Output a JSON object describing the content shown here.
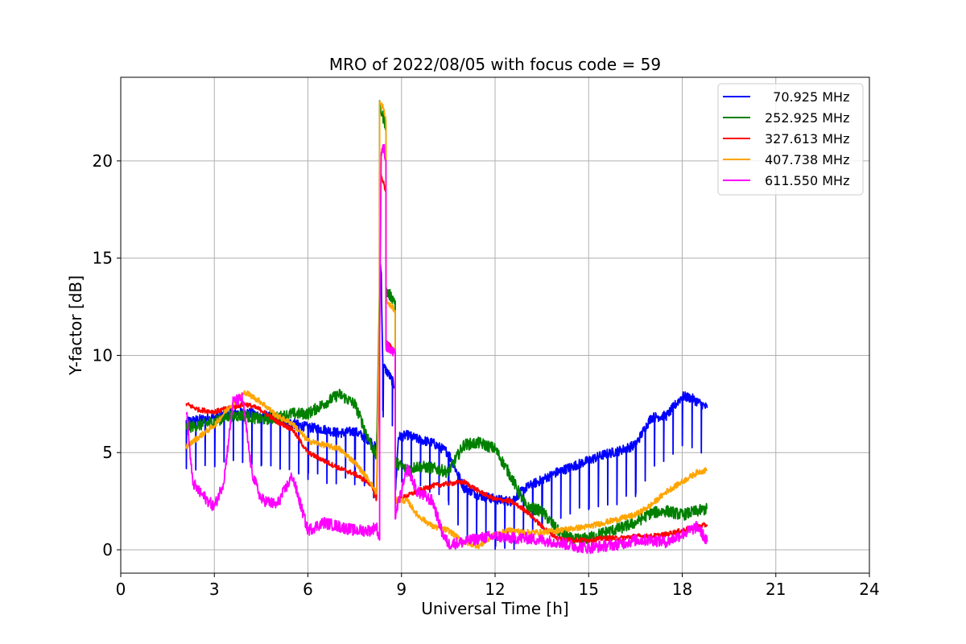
{
  "chart_data": {
    "type": "line",
    "title": "MRO of 2022/08/05 with focus code = 59",
    "xlabel": "Universal Time [h]",
    "ylabel": "Y-factor [dB]",
    "xlim": [
      0,
      24
    ],
    "ylim": [
      -1.2,
      24.3
    ],
    "xticks": [
      0,
      3,
      6,
      9,
      12,
      15,
      18,
      21,
      24
    ],
    "yticks": [
      0,
      5,
      10,
      15,
      20
    ],
    "grid": true,
    "legend_position": "top-right",
    "series": [
      {
        "name": "  70.925 MHz",
        "color": "#0000ff",
        "points": [
          [
            2.1,
            6.6
          ],
          [
            2.5,
            6.7
          ],
          [
            3.0,
            6.8
          ],
          [
            3.5,
            7.0
          ],
          [
            4.0,
            7.1
          ],
          [
            4.5,
            6.9
          ],
          [
            5.0,
            6.8
          ],
          [
            5.5,
            6.5
          ],
          [
            6.0,
            6.3
          ],
          [
            6.5,
            6.2
          ],
          [
            7.0,
            6.0
          ],
          [
            7.5,
            6.1
          ],
          [
            8.0,
            5.6
          ],
          [
            8.2,
            5.2
          ],
          [
            8.3,
            9.8
          ],
          [
            8.3,
            15.0
          ],
          [
            8.35,
            14.2
          ],
          [
            8.4,
            9.5
          ],
          [
            8.6,
            9.0
          ],
          [
            8.8,
            8.4
          ],
          [
            8.8,
            2.8
          ],
          [
            8.9,
            5.8
          ],
          [
            9.2,
            5.9
          ],
          [
            9.5,
            5.7
          ],
          [
            10.0,
            5.5
          ],
          [
            10.5,
            5.0
          ],
          [
            11.0,
            3.2
          ],
          [
            11.5,
            2.8
          ],
          [
            12.0,
            2.6
          ],
          [
            12.5,
            2.5
          ],
          [
            13.0,
            3.2
          ],
          [
            13.5,
            3.6
          ],
          [
            14.0,
            4.0
          ],
          [
            14.5,
            4.3
          ],
          [
            15.0,
            4.6
          ],
          [
            15.5,
            4.9
          ],
          [
            16.0,
            5.1
          ],
          [
            16.5,
            5.4
          ],
          [
            17.0,
            6.8
          ],
          [
            17.5,
            6.9
          ],
          [
            18.0,
            7.9
          ],
          [
            18.3,
            7.8
          ],
          [
            18.5,
            7.6
          ],
          [
            18.8,
            7.3
          ]
        ],
        "dip_interval": 0.3,
        "dip_depth": 2.5
      },
      {
        "name": "252.925 MHz",
        "color": "#008000",
        "points": [
          [
            2.1,
            6.3
          ],
          [
            2.5,
            6.4
          ],
          [
            3.0,
            6.6
          ],
          [
            3.5,
            6.9
          ],
          [
            4.0,
            6.9
          ],
          [
            4.5,
            6.7
          ],
          [
            5.0,
            6.8
          ],
          [
            5.5,
            7.0
          ],
          [
            6.0,
            7.0
          ],
          [
            6.5,
            7.5
          ],
          [
            7.0,
            8.0
          ],
          [
            7.5,
            7.5
          ],
          [
            8.0,
            5.5
          ],
          [
            8.2,
            4.8
          ],
          [
            8.3,
            13.6
          ],
          [
            8.3,
            22.8
          ],
          [
            8.4,
            22.3
          ],
          [
            8.5,
            21.8
          ],
          [
            8.5,
            13.3
          ],
          [
            8.8,
            12.8
          ],
          [
            8.8,
            4.5
          ],
          [
            9.2,
            4.1
          ],
          [
            9.5,
            4.3
          ],
          [
            10.0,
            4.2
          ],
          [
            10.5,
            4.0
          ],
          [
            11.0,
            5.4
          ],
          [
            11.5,
            5.5
          ],
          [
            12.0,
            5.2
          ],
          [
            12.5,
            3.8
          ],
          [
            13.0,
            2.2
          ],
          [
            13.5,
            2.0
          ],
          [
            14.0,
            1.0
          ],
          [
            14.5,
            0.5
          ],
          [
            15.0,
            0.6
          ],
          [
            15.5,
            0.9
          ],
          [
            16.0,
            1.1
          ],
          [
            16.5,
            1.4
          ],
          [
            17.0,
            1.9
          ],
          [
            17.5,
            2.0
          ],
          [
            18.0,
            1.8
          ],
          [
            18.5,
            2.0
          ],
          [
            18.8,
            2.1
          ]
        ]
      },
      {
        "name": "327.613 MHz",
        "color": "#ff0000",
        "points": [
          [
            2.1,
            7.5
          ],
          [
            2.5,
            7.2
          ],
          [
            3.0,
            7.1
          ],
          [
            3.5,
            7.3
          ],
          [
            4.0,
            7.5
          ],
          [
            4.5,
            7.2
          ],
          [
            5.0,
            6.6
          ],
          [
            5.5,
            6.2
          ],
          [
            6.0,
            5.0
          ],
          [
            6.5,
            4.6
          ],
          [
            7.0,
            4.2
          ],
          [
            7.5,
            3.9
          ],
          [
            8.0,
            3.4
          ],
          [
            8.2,
            2.6
          ],
          [
            8.3,
            11.0
          ],
          [
            8.3,
            19.5
          ],
          [
            8.4,
            19.0
          ],
          [
            8.5,
            18.4
          ],
          [
            8.5,
            10.7
          ],
          [
            8.8,
            10.2
          ],
          [
            8.8,
            2.5
          ],
          [
            9.2,
            2.8
          ],
          [
            9.5,
            3.0
          ],
          [
            10.0,
            3.3
          ],
          [
            10.5,
            3.4
          ],
          [
            11.0,
            3.5
          ],
          [
            11.5,
            3.0
          ],
          [
            12.0,
            2.6
          ],
          [
            12.5,
            2.5
          ],
          [
            13.0,
            2.0
          ],
          [
            13.5,
            1.2
          ],
          [
            14.0,
            0.6
          ],
          [
            14.5,
            0.5
          ],
          [
            15.0,
            0.5
          ],
          [
            15.5,
            0.6
          ],
          [
            16.0,
            0.6
          ],
          [
            16.5,
            0.7
          ],
          [
            17.0,
            0.7
          ],
          [
            17.5,
            0.8
          ],
          [
            18.0,
            1.0
          ],
          [
            18.5,
            1.2
          ],
          [
            18.8,
            1.3
          ]
        ]
      },
      {
        "name": "407.738 MHz",
        "color": "#ffa500",
        "points": [
          [
            2.1,
            5.3
          ],
          [
            2.5,
            5.8
          ],
          [
            3.0,
            6.4
          ],
          [
            3.5,
            7.4
          ],
          [
            4.0,
            8.1
          ],
          [
            4.5,
            7.6
          ],
          [
            5.0,
            6.9
          ],
          [
            5.5,
            6.5
          ],
          [
            6.0,
            5.6
          ],
          [
            6.5,
            5.4
          ],
          [
            7.0,
            5.2
          ],
          [
            7.5,
            4.5
          ],
          [
            8.0,
            3.5
          ],
          [
            8.2,
            2.9
          ],
          [
            8.3,
            13.1
          ],
          [
            8.3,
            23.0
          ],
          [
            8.4,
            22.8
          ],
          [
            8.5,
            22.1
          ],
          [
            8.5,
            12.8
          ],
          [
            8.8,
            12.3
          ],
          [
            8.8,
            2.6
          ],
          [
            9.2,
            2.5
          ],
          [
            9.5,
            1.8
          ],
          [
            10.0,
            1.2
          ],
          [
            10.5,
            1.0
          ],
          [
            11.0,
            0.4
          ],
          [
            11.5,
            0.2
          ],
          [
            12.0,
            0.8
          ],
          [
            12.5,
            1.0
          ],
          [
            13.0,
            0.9
          ],
          [
            13.5,
            0.9
          ],
          [
            14.0,
            1.0
          ],
          [
            14.5,
            1.1
          ],
          [
            15.0,
            1.2
          ],
          [
            15.5,
            1.4
          ],
          [
            16.0,
            1.6
          ],
          [
            16.5,
            1.8
          ],
          [
            17.0,
            2.3
          ],
          [
            17.5,
            3.0
          ],
          [
            18.0,
            3.5
          ],
          [
            18.5,
            4.0
          ],
          [
            18.8,
            4.1
          ]
        ]
      },
      {
        "name": "611.550 MHz",
        "color": "#ff00ff",
        "points": [
          [
            2.1,
            7.3
          ],
          [
            2.3,
            3.5
          ],
          [
            2.5,
            3.0
          ],
          [
            3.0,
            2.2
          ],
          [
            3.3,
            3.5
          ],
          [
            3.6,
            7.6
          ],
          [
            3.9,
            7.8
          ],
          [
            4.2,
            4.0
          ],
          [
            4.5,
            2.6
          ],
          [
            5.0,
            2.3
          ],
          [
            5.5,
            3.8
          ],
          [
            6.0,
            1.0
          ],
          [
            6.5,
            1.4
          ],
          [
            7.0,
            1.2
          ],
          [
            7.5,
            1.0
          ],
          [
            8.0,
            1.0
          ],
          [
            8.2,
            1.2
          ],
          [
            8.3,
            0.5
          ],
          [
            8.3,
            11.0
          ],
          [
            8.35,
            20.5
          ],
          [
            8.45,
            20.6
          ],
          [
            8.5,
            20.0
          ],
          [
            8.5,
            10.5
          ],
          [
            8.8,
            10.0
          ],
          [
            8.8,
            1.8
          ],
          [
            9.2,
            4.2
          ],
          [
            9.5,
            3.0
          ],
          [
            10.0,
            2.5
          ],
          [
            10.3,
            0.9
          ],
          [
            10.5,
            0.3
          ],
          [
            11.0,
            0.4
          ],
          [
            11.5,
            0.6
          ],
          [
            12.0,
            0.7
          ],
          [
            12.5,
            0.6
          ],
          [
            13.0,
            0.6
          ],
          [
            13.5,
            0.5
          ],
          [
            14.0,
            0.4
          ],
          [
            14.5,
            0.2
          ],
          [
            15.0,
            0.1
          ],
          [
            15.5,
            0.2
          ],
          [
            16.0,
            0.3
          ],
          [
            16.5,
            0.5
          ],
          [
            17.0,
            0.5
          ],
          [
            17.5,
            0.4
          ],
          [
            18.0,
            0.8
          ],
          [
            18.5,
            1.2
          ],
          [
            18.8,
            0.4
          ]
        ]
      }
    ]
  }
}
